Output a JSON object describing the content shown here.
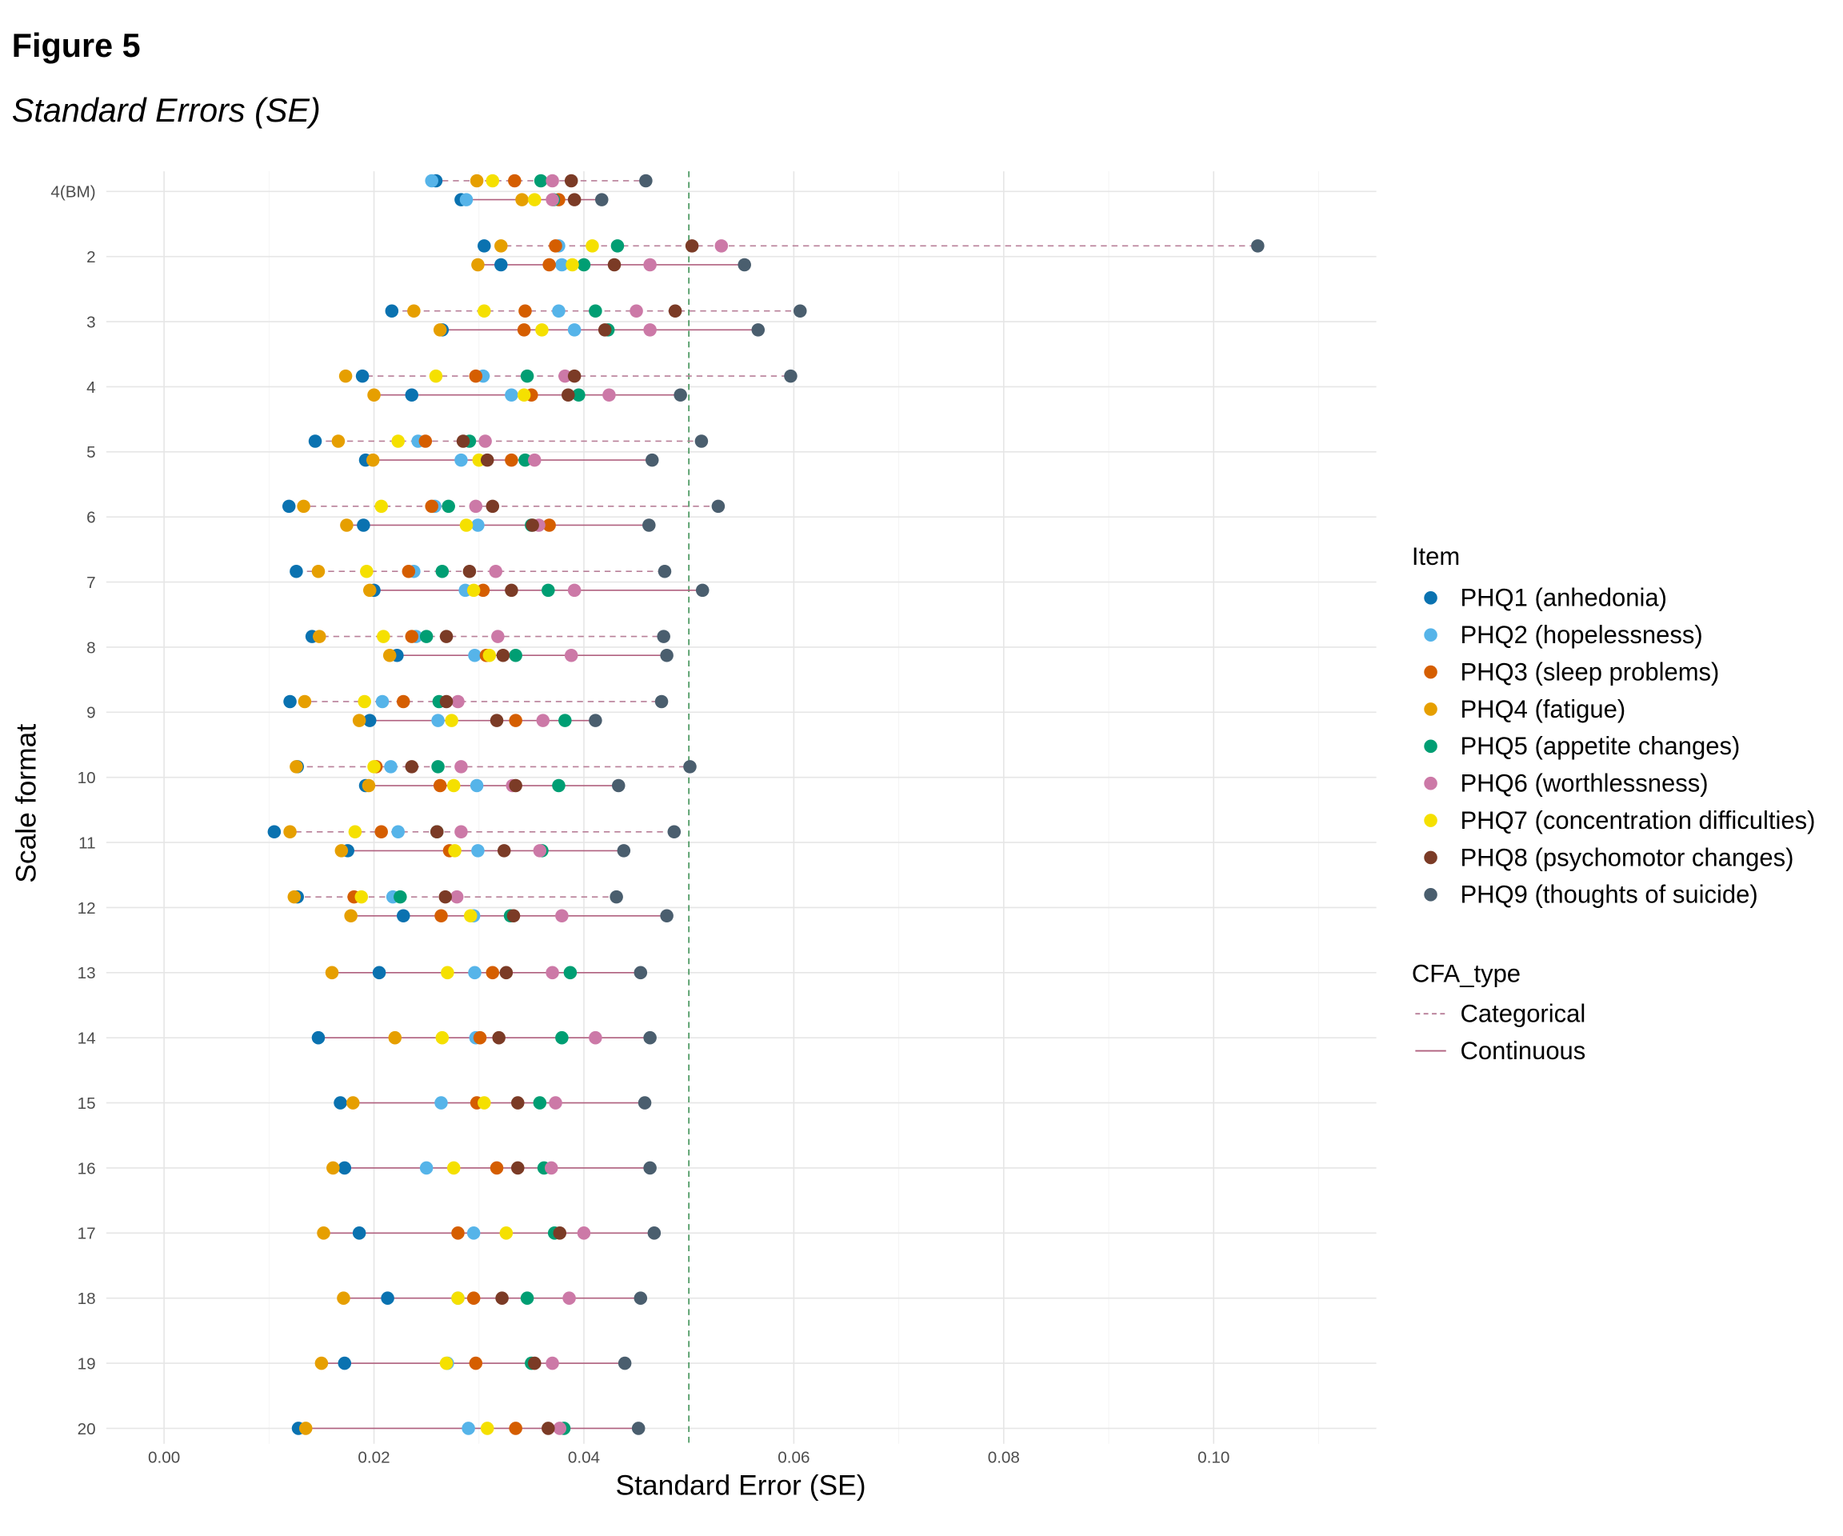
{
  "figure": {
    "label": "Figure 5",
    "subtitle": "Standard Errors (SE)"
  },
  "chart_data": {
    "type": "scatter",
    "title": "Standard Errors (SE)",
    "xlabel": "Standard Error (SE)",
    "ylabel": "Scale format",
    "xlim": [
      -0.0055,
      0.1155
    ],
    "x_ticks": [
      "0.00",
      "0.02",
      "0.04",
      "0.06",
      "0.08",
      "0.10"
    ],
    "x_tick_values": [
      0,
      0.02,
      0.04,
      0.06,
      0.08,
      0.1
    ],
    "reference_line": {
      "x": 0.05,
      "style": "dashed",
      "color": "#4E9A63"
    },
    "grid": true,
    "legend_position": "right",
    "legend_item_title": "Item",
    "legend_type_title": "CFA_type",
    "items": [
      {
        "name": "PHQ1 (anhedonia)",
        "color": "#0A72B0"
      },
      {
        "name": "PHQ2 (hopelessness)",
        "color": "#56B4E9"
      },
      {
        "name": "PHQ3 (sleep problems)",
        "color": "#D55E00"
      },
      {
        "name": "PHQ4 (fatigue)",
        "color": "#E69F00"
      },
      {
        "name": "PHQ5 (appetite changes)",
        "color": "#009E73"
      },
      {
        "name": "PHQ6 (worthlessness)",
        "color": "#CC79A7"
      },
      {
        "name": "PHQ7 (concentration difficulties)",
        "color": "#F5E000"
      },
      {
        "name": "PHQ8 (psychomotor changes)",
        "color": "#7B3B26"
      },
      {
        "name": "PHQ9 (thoughts of suicide)",
        "color": "#4A5E6E"
      }
    ],
    "cfa_types": [
      {
        "name": "Categorical",
        "dash": "dashed",
        "color": "#B87F98"
      },
      {
        "name": "Continuous",
        "dash": "solid",
        "color": "#B0607F"
      }
    ],
    "rows": [
      {
        "label": "4(BM)",
        "categorical": [
          0.0259,
          0.0255,
          0.0334,
          0.0298,
          0.0359,
          0.037,
          0.0313,
          0.0388,
          0.0459
        ],
        "continuous": [
          0.0283,
          0.0288,
          0.0376,
          0.0341,
          0.0371,
          0.037,
          0.0353,
          0.0391,
          0.0417
        ]
      },
      {
        "label": "2",
        "categorical": [
          0.0305,
          0.0376,
          0.0373,
          0.0321,
          0.0432,
          0.0531,
          0.0408,
          0.0503,
          0.1042
        ],
        "continuous": [
          0.0321,
          0.0379,
          0.0367,
          0.0299,
          0.04,
          0.0463,
          0.0389,
          0.0429,
          0.0553
        ]
      },
      {
        "label": "3",
        "categorical": [
          0.0217,
          0.0376,
          0.0344,
          0.0238,
          0.0411,
          0.045,
          0.0305,
          0.0487,
          0.0606
        ],
        "continuous": [
          0.0265,
          0.0391,
          0.0343,
          0.0263,
          0.0423,
          0.0463,
          0.036,
          0.042,
          0.0566
        ]
      },
      {
        "label": "4",
        "categorical": [
          0.0189,
          0.0304,
          0.0297,
          0.0173,
          0.0346,
          0.0382,
          0.0259,
          0.0391,
          0.0597
        ],
        "continuous": [
          0.0236,
          0.0331,
          0.035,
          0.02,
          0.0395,
          0.0424,
          0.0343,
          0.0385,
          0.0492
        ]
      },
      {
        "label": "5",
        "categorical": [
          0.0144,
          0.0242,
          0.0249,
          0.0166,
          0.0291,
          0.0306,
          0.0223,
          0.0285,
          0.0512
        ],
        "continuous": [
          0.0192,
          0.0283,
          0.0331,
          0.0199,
          0.0344,
          0.0353,
          0.03,
          0.0308,
          0.0465
        ]
      },
      {
        "label": "6",
        "categorical": [
          0.0119,
          0.0258,
          0.0255,
          0.0133,
          0.0271,
          0.0297,
          0.0207,
          0.0313,
          0.0528
        ],
        "continuous": [
          0.019,
          0.0299,
          0.0367,
          0.0174,
          0.035,
          0.0357,
          0.0288,
          0.0351,
          0.0462
        ]
      },
      {
        "label": "7",
        "categorical": [
          0.0126,
          0.0238,
          0.0233,
          0.0147,
          0.0265,
          0.0316,
          0.0193,
          0.0291,
          0.0477
        ],
        "continuous": [
          0.02,
          0.0287,
          0.0304,
          0.0196,
          0.0366,
          0.0391,
          0.0295,
          0.0331,
          0.0513
        ]
      },
      {
        "label": "8",
        "categorical": [
          0.0141,
          0.024,
          0.0236,
          0.0148,
          0.025,
          0.0318,
          0.0209,
          0.0269,
          0.0476
        ],
        "continuous": [
          0.0222,
          0.0296,
          0.0307,
          0.0215,
          0.0335,
          0.0388,
          0.031,
          0.0323,
          0.0479
        ]
      },
      {
        "label": "9",
        "categorical": [
          0.012,
          0.0208,
          0.0228,
          0.0134,
          0.0262,
          0.028,
          0.0191,
          0.0269,
          0.0474
        ],
        "continuous": [
          0.0196,
          0.0261,
          0.0335,
          0.0186,
          0.0382,
          0.0361,
          0.0274,
          0.0317,
          0.0411
        ]
      },
      {
        "label": "10",
        "categorical": [
          0.0127,
          0.0216,
          0.0202,
          0.0126,
          0.0261,
          0.0283,
          0.02,
          0.0236,
          0.0501
        ],
        "continuous": [
          0.0192,
          0.0298,
          0.0263,
          0.0195,
          0.0376,
          0.0332,
          0.0276,
          0.0335,
          0.0433
        ]
      },
      {
        "label": "11",
        "categorical": [
          0.0105,
          0.0223,
          0.0207,
          0.012,
          0.026,
          0.0283,
          0.0182,
          0.026,
          0.0486
        ],
        "continuous": [
          0.0175,
          0.0299,
          0.0272,
          0.0169,
          0.036,
          0.0358,
          0.0277,
          0.0324,
          0.0438
        ]
      },
      {
        "label": "12",
        "categorical": [
          0.0127,
          0.0218,
          0.0181,
          0.0124,
          0.0225,
          0.0279,
          0.0188,
          0.0268,
          0.0431
        ],
        "continuous": [
          0.0228,
          0.0295,
          0.0264,
          0.0178,
          0.033,
          0.0379,
          0.0292,
          0.0333,
          0.0479
        ]
      },
      {
        "label": "13",
        "categorical": null,
        "continuous": [
          0.0205,
          0.0296,
          0.0313,
          0.016,
          0.0387,
          0.037,
          0.027,
          0.0326,
          0.0454
        ]
      },
      {
        "label": "14",
        "categorical": null,
        "continuous": [
          0.0147,
          0.0297,
          0.0301,
          0.022,
          0.0379,
          0.0411,
          0.0265,
          0.0319,
          0.0463
        ]
      },
      {
        "label": "15",
        "categorical": null,
        "continuous": [
          0.0168,
          0.0264,
          0.0298,
          0.018,
          0.0358,
          0.0373,
          0.0305,
          0.0337,
          0.0458
        ]
      },
      {
        "label": "16",
        "categorical": null,
        "continuous": [
          0.0172,
          0.025,
          0.0317,
          0.0161,
          0.0362,
          0.0369,
          0.0276,
          0.0337,
          0.0463
        ]
      },
      {
        "label": "17",
        "categorical": null,
        "continuous": [
          0.0186,
          0.0295,
          0.028,
          0.0152,
          0.0372,
          0.04,
          0.0326,
          0.0377,
          0.0467
        ]
      },
      {
        "label": "18",
        "categorical": null,
        "continuous": [
          0.0213,
          0.028,
          0.0295,
          0.0171,
          0.0346,
          0.0386,
          0.028,
          0.0322,
          0.0454
        ]
      },
      {
        "label": "19",
        "categorical": null,
        "continuous": [
          0.0172,
          0.027,
          0.0297,
          0.015,
          0.035,
          0.037,
          0.0269,
          0.0353,
          0.0439
        ]
      },
      {
        "label": "20",
        "categorical": null,
        "continuous": [
          0.0128,
          0.029,
          0.0335,
          0.0135,
          0.0381,
          0.0377,
          0.0308,
          0.0366,
          0.0452
        ]
      }
    ]
  }
}
